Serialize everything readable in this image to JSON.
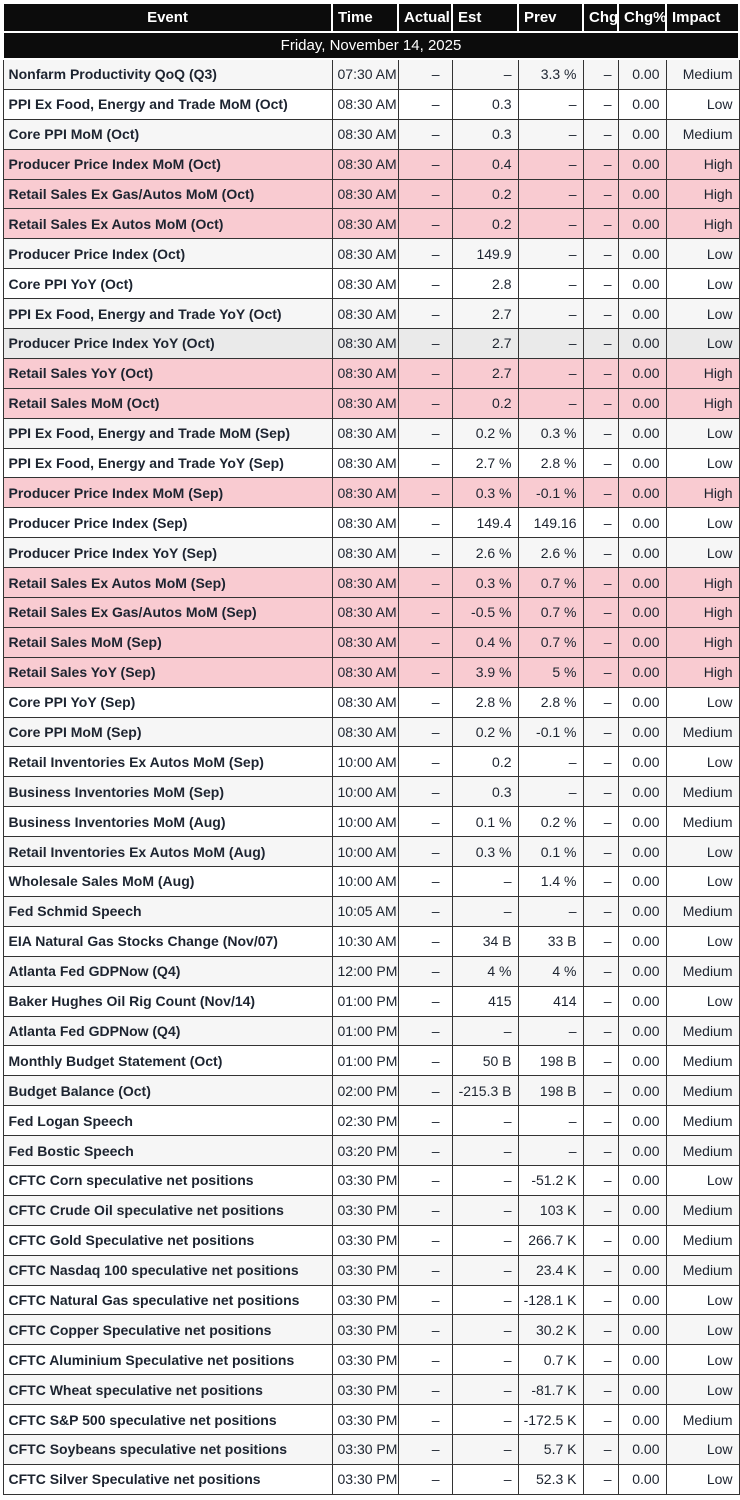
{
  "colors": {
    "header_bg": "#0c0c0c",
    "header_text": "#ffffff",
    "text": "#1d2430",
    "grid_border": "#333333",
    "stripe_row_bg": "#f6f6f6",
    "highlighted_row_bg": "#eaeaea",
    "high_impact_row_bg": "#f9cbd1"
  },
  "table": {
    "columns": [
      "Event",
      "Time",
      "Actual",
      "Est",
      "Prev",
      "Chg",
      "Chg%",
      "Impact"
    ],
    "date_header": "Friday, November 14, 2025",
    "rows": [
      {
        "event": "Nonfarm Productivity QoQ (Q3)",
        "time": "07:30 AM",
        "actual": "–",
        "est": "–",
        "prev": "3.3 %",
        "chg": "–",
        "chg_pct": "0.00",
        "impact": "Medium",
        "impact_level": "medium"
      },
      {
        "event": "PPI Ex Food, Energy and Trade MoM (Oct)",
        "time": "08:30 AM",
        "actual": "–",
        "est": "0.3",
        "prev": "–",
        "chg": "–",
        "chg_pct": "0.00",
        "impact": "Low",
        "impact_level": "low"
      },
      {
        "event": "Core PPI MoM (Oct)",
        "time": "08:30 AM",
        "actual": "–",
        "est": "0.3",
        "prev": "–",
        "chg": "–",
        "chg_pct": "0.00",
        "impact": "Medium",
        "impact_level": "medium"
      },
      {
        "event": "Producer Price Index MoM (Oct)",
        "time": "08:30 AM",
        "actual": "–",
        "est": "0.4",
        "prev": "–",
        "chg": "–",
        "chg_pct": "0.00",
        "impact": "High",
        "impact_level": "high"
      },
      {
        "event": "Retail Sales Ex Gas/Autos MoM (Oct)",
        "time": "08:30 AM",
        "actual": "–",
        "est": "0.2",
        "prev": "–",
        "chg": "–",
        "chg_pct": "0.00",
        "impact": "High",
        "impact_level": "high"
      },
      {
        "event": "Retail Sales Ex Autos MoM (Oct)",
        "time": "08:30 AM",
        "actual": "–",
        "est": "0.2",
        "prev": "–",
        "chg": "–",
        "chg_pct": "0.00",
        "impact": "High",
        "impact_level": "high"
      },
      {
        "event": "Producer Price Index (Oct)",
        "time": "08:30 AM",
        "actual": "–",
        "est": "149.9",
        "prev": "–",
        "chg": "–",
        "chg_pct": "0.00",
        "impact": "Low",
        "impact_level": "low"
      },
      {
        "event": "Core PPI YoY (Oct)",
        "time": "08:30 AM",
        "actual": "–",
        "est": "2.8",
        "prev": "–",
        "chg": "–",
        "chg_pct": "0.00",
        "impact": "Low",
        "impact_level": "low"
      },
      {
        "event": "PPI Ex Food, Energy and Trade YoY (Oct)",
        "time": "08:30 AM",
        "actual": "–",
        "est": "2.7",
        "prev": "–",
        "chg": "–",
        "chg_pct": "0.00",
        "impact": "Low",
        "impact_level": "low"
      },
      {
        "event": "Producer Price Index YoY (Oct)",
        "time": "08:30 AM",
        "actual": "–",
        "est": "2.7",
        "prev": "–",
        "chg": "–",
        "chg_pct": "0.00",
        "impact": "Low",
        "impact_level": "low",
        "highlighted": true
      },
      {
        "event": "Retail Sales YoY (Oct)",
        "time": "08:30 AM",
        "actual": "–",
        "est": "2.7",
        "prev": "–",
        "chg": "–",
        "chg_pct": "0.00",
        "impact": "High",
        "impact_level": "high"
      },
      {
        "event": "Retail Sales MoM (Oct)",
        "time": "08:30 AM",
        "actual": "–",
        "est": "0.2",
        "prev": "–",
        "chg": "–",
        "chg_pct": "0.00",
        "impact": "High",
        "impact_level": "high"
      },
      {
        "event": "PPI Ex Food, Energy and Trade MoM (Sep)",
        "time": "08:30 AM",
        "actual": "–",
        "est": "0.2 %",
        "prev": "0.3 %",
        "chg": "–",
        "chg_pct": "0.00",
        "impact": "Low",
        "impact_level": "low"
      },
      {
        "event": "PPI Ex Food, Energy and Trade YoY (Sep)",
        "time": "08:30 AM",
        "actual": "–",
        "est": "2.7 %",
        "prev": "2.8 %",
        "chg": "–",
        "chg_pct": "0.00",
        "impact": "Low",
        "impact_level": "low"
      },
      {
        "event": "Producer Price Index MoM (Sep)",
        "time": "08:30 AM",
        "actual": "–",
        "est": "0.3 %",
        "prev": "-0.1 %",
        "chg": "–",
        "chg_pct": "0.00",
        "impact": "High",
        "impact_level": "high"
      },
      {
        "event": "Producer Price Index (Sep)",
        "time": "08:30 AM",
        "actual": "–",
        "est": "149.4",
        "prev": "149.16",
        "chg": "–",
        "chg_pct": "0.00",
        "impact": "Low",
        "impact_level": "low"
      },
      {
        "event": "Producer Price Index YoY (Sep)",
        "time": "08:30 AM",
        "actual": "–",
        "est": "2.6 %",
        "prev": "2.6 %",
        "chg": "–",
        "chg_pct": "0.00",
        "impact": "Low",
        "impact_level": "low"
      },
      {
        "event": "Retail Sales Ex Autos MoM (Sep)",
        "time": "08:30 AM",
        "actual": "–",
        "est": "0.3 %",
        "prev": "0.7 %",
        "chg": "–",
        "chg_pct": "0.00",
        "impact": "High",
        "impact_level": "high"
      },
      {
        "event": "Retail Sales Ex Gas/Autos MoM (Sep)",
        "time": "08:30 AM",
        "actual": "–",
        "est": "-0.5 %",
        "prev": "0.7 %",
        "chg": "–",
        "chg_pct": "0.00",
        "impact": "High",
        "impact_level": "high"
      },
      {
        "event": "Retail Sales MoM (Sep)",
        "time": "08:30 AM",
        "actual": "–",
        "est": "0.4 %",
        "prev": "0.7 %",
        "chg": "–",
        "chg_pct": "0.00",
        "impact": "High",
        "impact_level": "high"
      },
      {
        "event": "Retail Sales YoY (Sep)",
        "time": "08:30 AM",
        "actual": "–",
        "est": "3.9 %",
        "prev": "5 %",
        "chg": "–",
        "chg_pct": "0.00",
        "impact": "High",
        "impact_level": "high"
      },
      {
        "event": "Core PPI YoY (Sep)",
        "time": "08:30 AM",
        "actual": "–",
        "est": "2.8 %",
        "prev": "2.8 %",
        "chg": "–",
        "chg_pct": "0.00",
        "impact": "Low",
        "impact_level": "low"
      },
      {
        "event": "Core PPI MoM (Sep)",
        "time": "08:30 AM",
        "actual": "–",
        "est": "0.2 %",
        "prev": "-0.1 %",
        "chg": "–",
        "chg_pct": "0.00",
        "impact": "Medium",
        "impact_level": "medium"
      },
      {
        "event": "Retail Inventories Ex Autos MoM (Sep)",
        "time": "10:00 AM",
        "actual": "–",
        "est": "0.2",
        "prev": "–",
        "chg": "–",
        "chg_pct": "0.00",
        "impact": "Low",
        "impact_level": "low"
      },
      {
        "event": "Business Inventories MoM (Sep)",
        "time": "10:00 AM",
        "actual": "–",
        "est": "0.3",
        "prev": "–",
        "chg": "–",
        "chg_pct": "0.00",
        "impact": "Medium",
        "impact_level": "medium"
      },
      {
        "event": "Business Inventories MoM (Aug)",
        "time": "10:00 AM",
        "actual": "–",
        "est": "0.1 %",
        "prev": "0.2 %",
        "chg": "–",
        "chg_pct": "0.00",
        "impact": "Medium",
        "impact_level": "medium"
      },
      {
        "event": "Retail Inventories Ex Autos MoM (Aug)",
        "time": "10:00 AM",
        "actual": "–",
        "est": "0.3 %",
        "prev": "0.1 %",
        "chg": "–",
        "chg_pct": "0.00",
        "impact": "Low",
        "impact_level": "low"
      },
      {
        "event": "Wholesale Sales MoM (Aug)",
        "time": "10:00 AM",
        "actual": "–",
        "est": "–",
        "prev": "1.4 %",
        "chg": "–",
        "chg_pct": "0.00",
        "impact": "Low",
        "impact_level": "low"
      },
      {
        "event": "Fed Schmid Speech",
        "time": "10:05 AM",
        "actual": "–",
        "est": "–",
        "prev": "–",
        "chg": "–",
        "chg_pct": "0.00",
        "impact": "Medium",
        "impact_level": "medium"
      },
      {
        "event": "EIA Natural Gas Stocks Change (Nov/07)",
        "time": "10:30 AM",
        "actual": "–",
        "est": "34 B",
        "prev": "33 B",
        "chg": "–",
        "chg_pct": "0.00",
        "impact": "Low",
        "impact_level": "low"
      },
      {
        "event": "Atlanta Fed GDPNow (Q4)",
        "time": "12:00 PM",
        "actual": "–",
        "est": "4 %",
        "prev": "4 %",
        "chg": "–",
        "chg_pct": "0.00",
        "impact": "Medium",
        "impact_level": "medium"
      },
      {
        "event": "Baker Hughes Oil Rig Count (Nov/14)",
        "time": "01:00 PM",
        "actual": "–",
        "est": "415",
        "prev": "414",
        "chg": "–",
        "chg_pct": "0.00",
        "impact": "Low",
        "impact_level": "low"
      },
      {
        "event": "Atlanta Fed GDPNow (Q4)",
        "time": "01:00 PM",
        "actual": "–",
        "est": "–",
        "prev": "–",
        "chg": "–",
        "chg_pct": "0.00",
        "impact": "Medium",
        "impact_level": "medium"
      },
      {
        "event": "Monthly Budget Statement (Oct)",
        "time": "01:00 PM",
        "actual": "–",
        "est": "50 B",
        "prev": "198 B",
        "chg": "–",
        "chg_pct": "0.00",
        "impact": "Medium",
        "impact_level": "medium"
      },
      {
        "event": "Budget Balance (Oct)",
        "time": "02:00 PM",
        "actual": "–",
        "est": "-215.3 B",
        "prev": "198 B",
        "chg": "–",
        "chg_pct": "0.00",
        "impact": "Medium",
        "impact_level": "medium"
      },
      {
        "event": "Fed Logan Speech",
        "time": "02:30 PM",
        "actual": "–",
        "est": "–",
        "prev": "–",
        "chg": "–",
        "chg_pct": "0.00",
        "impact": "Medium",
        "impact_level": "medium"
      },
      {
        "event": "Fed Bostic Speech",
        "time": "03:20 PM",
        "actual": "–",
        "est": "–",
        "prev": "–",
        "chg": "–",
        "chg_pct": "0.00",
        "impact": "Medium",
        "impact_level": "medium"
      },
      {
        "event": "CFTC Corn speculative net positions",
        "time": "03:30 PM",
        "actual": "–",
        "est": "–",
        "prev": "-51.2 K",
        "chg": "–",
        "chg_pct": "0.00",
        "impact": "Low",
        "impact_level": "low"
      },
      {
        "event": "CFTC Crude Oil speculative net positions",
        "time": "03:30 PM",
        "actual": "–",
        "est": "–",
        "prev": "103 K",
        "chg": "–",
        "chg_pct": "0.00",
        "impact": "Medium",
        "impact_level": "medium"
      },
      {
        "event": "CFTC Gold Speculative net positions",
        "time": "03:30 PM",
        "actual": "–",
        "est": "–",
        "prev": "266.7 K",
        "chg": "–",
        "chg_pct": "0.00",
        "impact": "Medium",
        "impact_level": "medium"
      },
      {
        "event": "CFTC Nasdaq 100 speculative net positions",
        "time": "03:30 PM",
        "actual": "–",
        "est": "–",
        "prev": "23.4 K",
        "chg": "–",
        "chg_pct": "0.00",
        "impact": "Medium",
        "impact_level": "medium"
      },
      {
        "event": "CFTC Natural Gas speculative net positions",
        "time": "03:30 PM",
        "actual": "–",
        "est": "–",
        "prev": "-128.1 K",
        "chg": "–",
        "chg_pct": "0.00",
        "impact": "Low",
        "impact_level": "low"
      },
      {
        "event": "CFTC Copper Speculative net positions",
        "time": "03:30 PM",
        "actual": "–",
        "est": "–",
        "prev": "30.2 K",
        "chg": "–",
        "chg_pct": "0.00",
        "impact": "Low",
        "impact_level": "low"
      },
      {
        "event": "CFTC Aluminium Speculative net positions",
        "time": "03:30 PM",
        "actual": "–",
        "est": "–",
        "prev": "0.7 K",
        "chg": "–",
        "chg_pct": "0.00",
        "impact": "Low",
        "impact_level": "low"
      },
      {
        "event": "CFTC Wheat speculative net positions",
        "time": "03:30 PM",
        "actual": "–",
        "est": "–",
        "prev": "-81.7 K",
        "chg": "–",
        "chg_pct": "0.00",
        "impact": "Low",
        "impact_level": "low"
      },
      {
        "event": "CFTC S&P 500 speculative net positions",
        "time": "03:30 PM",
        "actual": "–",
        "est": "–",
        "prev": "-172.5 K",
        "chg": "–",
        "chg_pct": "0.00",
        "impact": "Medium",
        "impact_level": "medium"
      },
      {
        "event": "CFTC Soybeans speculative net positions",
        "time": "03:30 PM",
        "actual": "–",
        "est": "–",
        "prev": "5.7 K",
        "chg": "–",
        "chg_pct": "0.00",
        "impact": "Low",
        "impact_level": "low"
      },
      {
        "event": "CFTC Silver Speculative net positions",
        "time": "03:30 PM",
        "actual": "–",
        "est": "–",
        "prev": "52.3 K",
        "chg": "–",
        "chg_pct": "0.00",
        "impact": "Low",
        "impact_level": "low"
      }
    ]
  }
}
